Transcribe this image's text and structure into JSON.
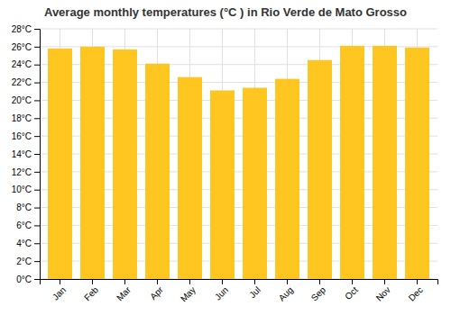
{
  "chart_data": {
    "type": "bar",
    "title": "Average monthly temperatures (°C ) in Rio Verde de Mato Grosso",
    "categories": [
      "Jan",
      "Feb",
      "Mar",
      "Apr",
      "May",
      "Jun",
      "Jul",
      "Aug",
      "Sep",
      "Oct",
      "Nov",
      "Dec"
    ],
    "values": [
      25.8,
      26.0,
      25.7,
      24.1,
      22.6,
      21.1,
      21.4,
      22.4,
      24.5,
      26.1,
      26.1,
      25.9
    ],
    "color": "#FFC520",
    "ylim": [
      0,
      28
    ],
    "yticks": [
      {
        "value": 0,
        "label": "0°C"
      },
      {
        "value": 2,
        "label": "2°C"
      },
      {
        "value": 4,
        "label": "4°C"
      },
      {
        "value": 6,
        "label": "6°C"
      },
      {
        "value": 8,
        "label": "8°C"
      },
      {
        "value": 10,
        "label": "10°C"
      },
      {
        "value": 12,
        "label": "12°C"
      },
      {
        "value": 14,
        "label": "14°C"
      },
      {
        "value": 16,
        "label": "16°C"
      },
      {
        "value": 18,
        "label": "18°C"
      },
      {
        "value": 20,
        "label": "20°C"
      },
      {
        "value": 22,
        "label": "22°C"
      },
      {
        "value": 24,
        "label": "24°C"
      },
      {
        "value": 26,
        "label": "26°C"
      },
      {
        "value": 28,
        "label": "28°C"
      }
    ],
    "grid": true
  }
}
